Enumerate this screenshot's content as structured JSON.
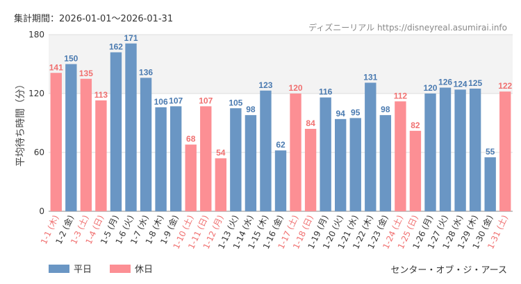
{
  "header": {
    "period_label": "集計期間：2026-01-01〜2026-01-31",
    "source_label": "ディズニーリアル https://disneyreal.asumirai.info"
  },
  "footer": {
    "attraction_name": "センター・オブ・ジ・アース"
  },
  "chart_data": {
    "type": "bar",
    "title": "",
    "xlabel": "",
    "ylabel": "平均待ち時間（分）",
    "ylim": [
      0,
      180
    ],
    "yticks": [
      0,
      60,
      120,
      180
    ],
    "highlight_band": [
      120,
      180
    ],
    "categories": [
      "1-1 (木)",
      "1-2 (金)",
      "1-3 (土)",
      "1-4 (日)",
      "1-5 (月)",
      "1-6 (火)",
      "1-7 (水)",
      "1-8 (木)",
      "1-9 (金)",
      "1-10 (土)",
      "1-11 (日)",
      "1-12 (月)",
      "1-13 (火)",
      "1-14 (水)",
      "1-15 (木)",
      "1-16 (金)",
      "1-17 (土)",
      "1-18 (日)",
      "1-19 (月)",
      "1-20 (火)",
      "1-21 (水)",
      "1-22 (木)",
      "1-23 (金)",
      "1-24 (土)",
      "1-25 (日)",
      "1-26 (月)",
      "1-27 (火)",
      "1-28 (水)",
      "1-29 (木)",
      "1-30 (金)",
      "1-31 (土)"
    ],
    "values": [
      141,
      150,
      135,
      113,
      162,
      171,
      136,
      106,
      107,
      68,
      107,
      54,
      105,
      98,
      123,
      62,
      120,
      84,
      116,
      94,
      95,
      131,
      98,
      112,
      82,
      120,
      126,
      124,
      125,
      55,
      122
    ],
    "holiday": [
      true,
      false,
      true,
      true,
      false,
      false,
      false,
      false,
      false,
      true,
      true,
      true,
      false,
      false,
      false,
      false,
      true,
      true,
      false,
      false,
      false,
      false,
      false,
      true,
      true,
      false,
      false,
      false,
      false,
      false,
      true
    ],
    "legend": [
      {
        "name": "平日",
        "color": "#6a96c4"
      },
      {
        "name": "休日",
        "color": "#fc8f94"
      }
    ],
    "colors": {
      "weekday": "#6a96c4",
      "holiday": "#fc8f94",
      "weekday_label": "#4a7ab0",
      "holiday_label": "#f07070"
    }
  }
}
